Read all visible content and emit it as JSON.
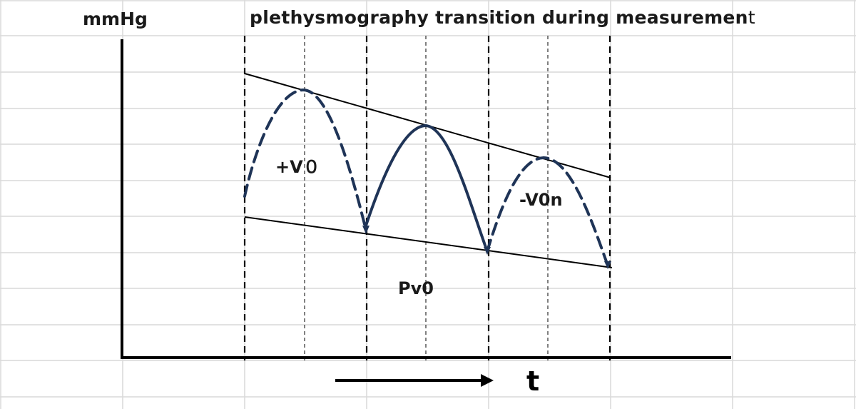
{
  "diagram": {
    "unit_label": "mmHg",
    "title_main": "plethysmography transition during measuremen",
    "title_suffix": "t",
    "labels": {
      "plus_v0": "+V０",
      "minus_v0n": "-V0n",
      "pv0": "Pv0",
      "time_axis": "t"
    },
    "colors": {
      "curve": "#1f3457",
      "axis": "#000000",
      "grid": "#d9d9d9",
      "envelope": "#000000"
    },
    "curve_styles": [
      "dashed",
      "solid",
      "dashed"
    ]
  }
}
